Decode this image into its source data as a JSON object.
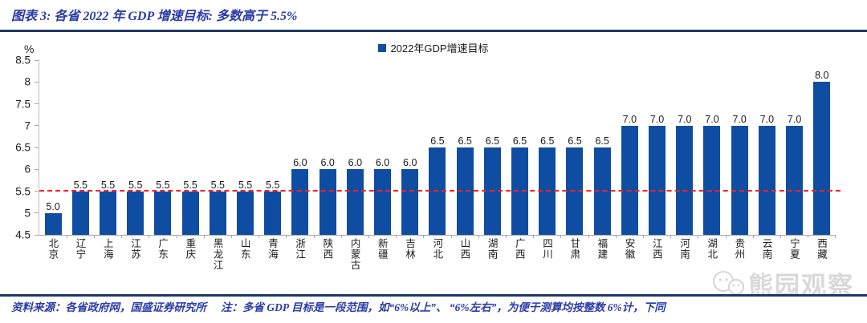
{
  "header": {
    "title": "图表 3: 各省 2022 年 GDP 增速目标: 多数高于 5.5%"
  },
  "chart_data": {
    "type": "bar",
    "title": "各省 2022 年 GDP 增速目标",
    "unit_label": "%",
    "legend": "2022年GDP增速目标",
    "legend_position": "top-center",
    "grid": false,
    "categories": [
      "北京",
      "辽宁",
      "上海",
      "江苏",
      "广东",
      "重庆",
      "黑龙江",
      "山东",
      "青海",
      "浙江",
      "陕西",
      "内蒙古",
      "新疆",
      "吉林",
      "河北",
      "山西",
      "湖南",
      "广西",
      "四川",
      "甘肃",
      "福建",
      "安徽",
      "江西",
      "河南",
      "湖北",
      "贵州",
      "云南",
      "宁夏",
      "西藏"
    ],
    "values": [
      5.0,
      5.5,
      5.5,
      5.5,
      5.5,
      5.5,
      5.5,
      5.5,
      5.5,
      6.0,
      6.0,
      6.0,
      6.0,
      6.0,
      6.5,
      6.5,
      6.5,
      6.5,
      6.5,
      6.5,
      6.5,
      7.0,
      7.0,
      7.0,
      7.0,
      7.0,
      7.0,
      7.0,
      8.0
    ],
    "ylim": [
      4.5,
      8.5
    ],
    "yticks": [
      "8.5",
      "8",
      "7.5",
      "7",
      "6.5",
      "6",
      "5.5",
      "5",
      "4.5"
    ],
    "reference_line": {
      "value": 5.5,
      "color": "#FF2020",
      "style": "dashed"
    },
    "bar_color": "#0E4DA1"
  },
  "watermark": {
    "text": "熊园观察",
    "icon": "wechat-icon"
  },
  "footer": {
    "source": "资料来源：各省政府网，国盛证券研究所",
    "note": "注：多省 GDP 目标是一段范围，如“6%以上”、 “6%左右”，为便于测算均按整数 6%计，下同"
  },
  "colors": {
    "bar_blue": "#0E4DA1",
    "rule_navy": "#1F3864",
    "title_blue": "#2B3CA6",
    "reference_red": "#FF2020",
    "axis_gray": "#A6A6A6",
    "watermark_gray": "#D3D3D3"
  }
}
